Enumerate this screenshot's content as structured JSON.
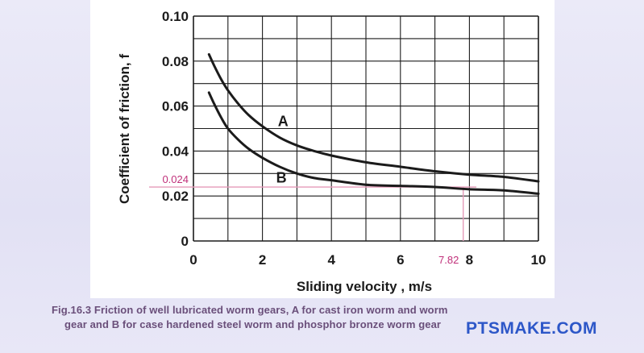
{
  "chart_data": {
    "type": "line",
    "title": "",
    "xlabel": "Sliding velocity , m/s",
    "ylabel": "Coefficient of friction, f",
    "xlim": [
      0,
      10
    ],
    "ylim": [
      0,
      0.1
    ],
    "grid": true,
    "x_ticks": [
      "0",
      "2",
      "4",
      "6",
      "8",
      "10"
    ],
    "y_ticks": [
      "0",
      "0.02",
      "0.04",
      "0.06",
      "0.08",
      "0.10"
    ],
    "series": [
      {
        "name": "A",
        "x": [
          0.45,
          0.6,
          0.8,
          1.0,
          1.3,
          1.6,
          2.0,
          2.5,
          3.0,
          3.5,
          4.0,
          5.0,
          6.0,
          7.0,
          8.0,
          9.0,
          10.0
        ],
        "y": [
          0.083,
          0.078,
          0.072,
          0.067,
          0.061,
          0.056,
          0.051,
          0.046,
          0.0425,
          0.04,
          0.038,
          0.035,
          0.033,
          0.031,
          0.0295,
          0.0285,
          0.0265
        ]
      },
      {
        "name": "B",
        "x": [
          0.45,
          0.6,
          0.8,
          1.0,
          1.3,
          1.6,
          2.0,
          2.5,
          3.0,
          3.5,
          4.0,
          5.0,
          6.0,
          7.0,
          8.0,
          9.0,
          10.0
        ],
        "y": [
          0.066,
          0.061,
          0.055,
          0.05,
          0.045,
          0.041,
          0.037,
          0.033,
          0.03,
          0.028,
          0.027,
          0.025,
          0.0245,
          0.024,
          0.023,
          0.0225,
          0.021
        ]
      }
    ],
    "series_labels": [
      {
        "text": "A",
        "x": 2.6,
        "y": 0.051
      },
      {
        "text": "B",
        "x": 2.55,
        "y": 0.026
      }
    ],
    "annotations": [
      {
        "text": "0.024",
        "axis": "y",
        "value": 0.024,
        "color": "#c0307a"
      },
      {
        "text": "7.82",
        "axis": "x",
        "value": 7.82,
        "color": "#c0307a"
      }
    ]
  },
  "caption": {
    "line1": "Fig.16.3 Friction of well lubricated worm gears, A for cast iron worm and worm",
    "line2": "gear and B for case hardened steel worm and phosphor bronze worm gear"
  },
  "watermark": "PTSMAKE.COM",
  "colors": {
    "curve": "#1b1b1b",
    "grid": "#1b1b1b",
    "annotation": "#c0307a",
    "annotation_line": "#e59ab9"
  }
}
